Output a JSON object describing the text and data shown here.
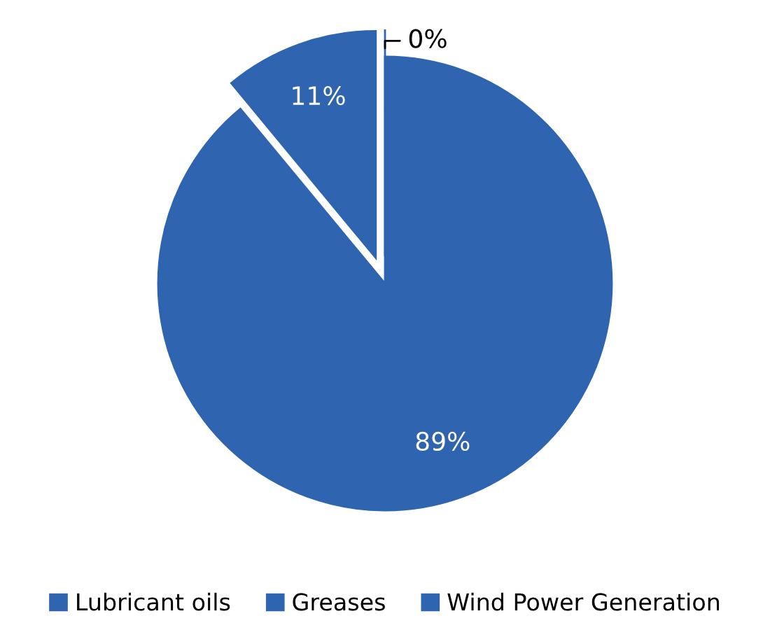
{
  "chart_data": {
    "type": "pie",
    "categories": [
      "Lubricant oils",
      "Greases",
      "Wind Power Generation"
    ],
    "values": [
      89,
      11,
      0
    ],
    "colors": [
      "#2e64b0",
      "#2e64b0",
      "#2e64b0"
    ],
    "value_labels": [
      "89%",
      "11%",
      "0%"
    ],
    "legend": "bottom"
  }
}
